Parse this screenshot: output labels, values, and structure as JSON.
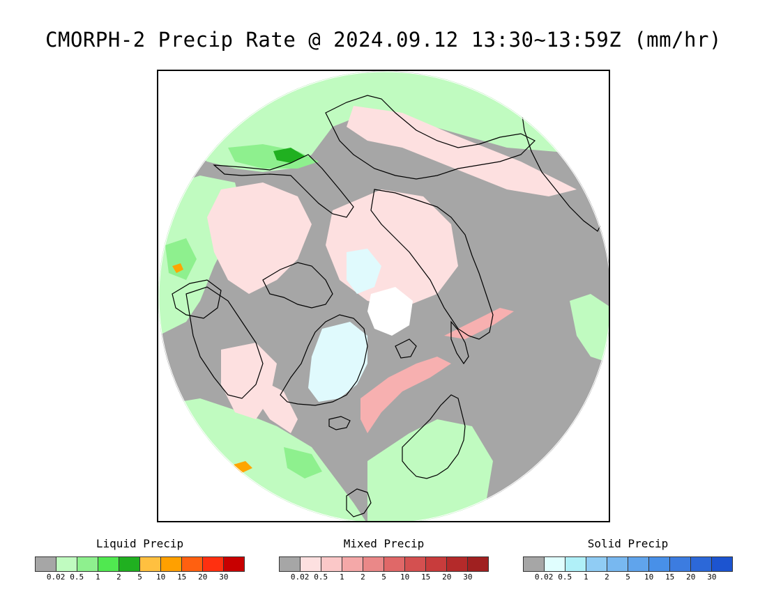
{
  "title": "CMORPH-2 Precip Rate @ 2024.09.12 13:30~13:59Z (mm/hr)",
  "map": {
    "projection": "north-polar-stereographic",
    "background_color": "#a6a6a6",
    "coastline_color": "#000000",
    "regions": [
      {
        "name": "liquid-light",
        "color": "#c0fbc0"
      },
      {
        "name": "liquid-medium",
        "color": "#8ef08e"
      },
      {
        "name": "liquid-heavy",
        "color": "#20b020"
      },
      {
        "name": "mixed-light",
        "color": "#fde0e0"
      },
      {
        "name": "mixed-medium",
        "color": "#f7b0b0"
      },
      {
        "name": "mixed-heavy",
        "color": "#e08080"
      },
      {
        "name": "solid-light",
        "color": "#e0fafd"
      },
      {
        "name": "ice-white",
        "color": "#ffffff"
      },
      {
        "name": "liquid-intense",
        "color": "#ffa500"
      }
    ]
  },
  "legends": [
    {
      "title": "Liquid Precip",
      "colors": [
        "#a6a6a6",
        "#c0fbc0",
        "#8ef08e",
        "#50e850",
        "#20b020",
        "#ffc040",
        "#ffa000",
        "#ff6010",
        "#ff3010",
        "#c80000"
      ],
      "ticks": [
        "0.02",
        "0.5",
        "1",
        "2",
        "5",
        "10",
        "15",
        "20",
        "30"
      ]
    },
    {
      "title": "Mixed Precip",
      "colors": [
        "#a6a6a6",
        "#fde0e0",
        "#fbc8c8",
        "#f4a8a8",
        "#ea8888",
        "#e06868",
        "#d45050",
        "#c83c3c",
        "#b42a2a",
        "#a02020"
      ],
      "ticks": [
        "0.02",
        "0.5",
        "1",
        "2",
        "5",
        "10",
        "15",
        "20",
        "30"
      ]
    },
    {
      "title": "Solid Precip",
      "colors": [
        "#a6a6a6",
        "#e0fefe",
        "#b0f0f8",
        "#90ccf4",
        "#78b8f0",
        "#60a4ec",
        "#4890e8",
        "#3c7ce0",
        "#2c68d8",
        "#1c54d0"
      ],
      "ticks": [
        "0.02",
        "0.5",
        "1",
        "2",
        "5",
        "10",
        "15",
        "20",
        "30"
      ]
    }
  ]
}
